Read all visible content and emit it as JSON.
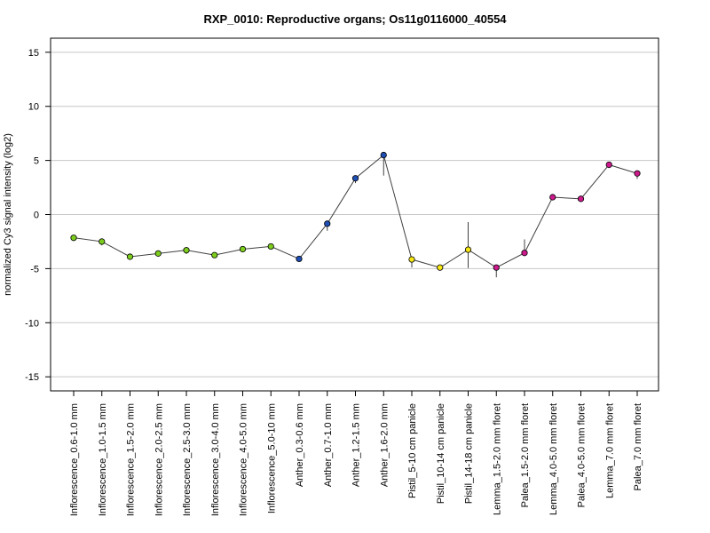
{
  "chart_data": {
    "type": "line",
    "title": "RXP_0010: Reproductive organs; Os11g0116000_40554",
    "xlabel": "",
    "ylabel": "normalized Cy3 signal intensity (log2)",
    "ylim": [
      -16.3,
      16.3
    ],
    "yticks": [
      15,
      10,
      5,
      0,
      -5,
      -10,
      -15
    ],
    "ytick_labels": [
      "15",
      "10",
      "5",
      "0",
      "-5",
      "-10",
      "-15"
    ],
    "grid": true,
    "categories": [
      "Inflorescence_0.6-1.0 mm",
      "Inflorescence_1.0-1.5 mm",
      "Inflorescence_1.5-2.0 mm",
      "Inflorescence_2.0-2.5 mm",
      "Inflorescence_2.5-3.0 mm",
      "Inflorescence_3.0-4.0 mm",
      "Inflorescence_4.0-5.0 mm",
      "Inflorescence_5.0-10 mm",
      "Anther_0.3-0.6 mm",
      "Anther_0.7-1.0 mm",
      "Anther_1.2-1.5 mm",
      "Anther_1.6-2.0 mm",
      "Pistil_5-10 cm panicle",
      "Pistil_10-14 cm panicle",
      "Pistil_14-18 cm panicle",
      "Lemma_1.5-2.0 mm floret",
      "Palea_1.5-2.0 mm floret",
      "Lemma_4.0-5.0 mm floret",
      "Palea_4.0-5.0 mm floret",
      "Lemma_7.0 mm floret",
      "Palea_7.0 mm floret"
    ],
    "values": [
      -2.15,
      -2.5,
      -3.9,
      -3.6,
      -3.3,
      -3.75,
      -3.2,
      -2.95,
      -4.1,
      -0.85,
      3.35,
      5.5,
      -4.15,
      -4.9,
      -3.25,
      -4.9,
      -3.55,
      1.6,
      1.45,
      4.6,
      3.8
    ],
    "error_low": [
      -2.45,
      -2.85,
      -4.0,
      -3.75,
      -3.65,
      -3.85,
      -3.35,
      -3.05,
      -4.2,
      -1.5,
      2.9,
      3.6,
      -4.9,
      -5.0,
      -4.95,
      -5.8,
      -3.65,
      1.45,
      1.3,
      4.3,
      3.3
    ],
    "error_high": [
      -1.9,
      -2.2,
      -3.8,
      -3.45,
      -3.0,
      -3.6,
      -3.05,
      -2.85,
      -4.0,
      -0.55,
      3.6,
      5.65,
      -3.95,
      -4.8,
      -0.7,
      -4.75,
      -2.3,
      1.7,
      1.75,
      4.75,
      4.0
    ],
    "colors": [
      "#7ccd1e",
      "#7ccd1e",
      "#7ccd1e",
      "#7ccd1e",
      "#7ccd1e",
      "#7ccd1e",
      "#7ccd1e",
      "#7ccd1e",
      "#1f4fb4",
      "#1f4fb4",
      "#1f4fb4",
      "#1f4fb4",
      "#f5e614",
      "#f5e614",
      "#f5e614",
      "#cc1a8c",
      "#cc1a8c",
      "#cc1a8c",
      "#cc1a8c",
      "#cc1a8c",
      "#cc1a8c"
    ],
    "line_color": "#404040",
    "grid_color": "#c8c8c8"
  }
}
